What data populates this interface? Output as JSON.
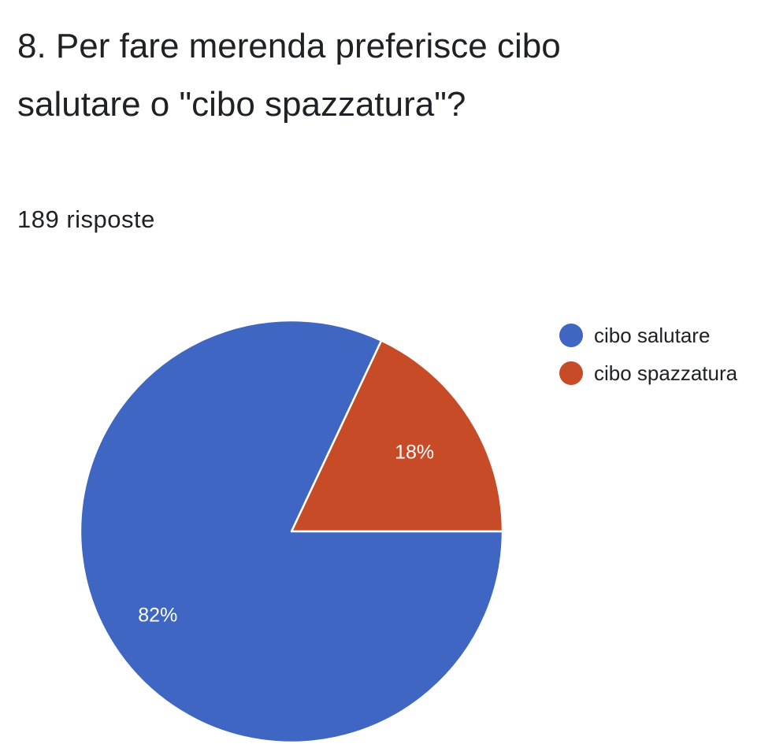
{
  "question": {
    "title": "8. Per fare merenda preferisce cibo salutare o \"cibo spazzatura\"?",
    "response_count": "189 risposte"
  },
  "chart_data": {
    "type": "pie",
    "title": "8. Per fare merenda preferisce cibo salutare o \"cibo spazzatura\"?",
    "total_responses": 189,
    "categories": [
      "cibo salutare",
      "cibo spazzatura"
    ],
    "values": [
      82,
      18
    ],
    "labels": [
      "82%",
      "18%"
    ],
    "colors": [
      "#3F66C3",
      "#C84B28"
    ],
    "legend_placement": "right"
  }
}
